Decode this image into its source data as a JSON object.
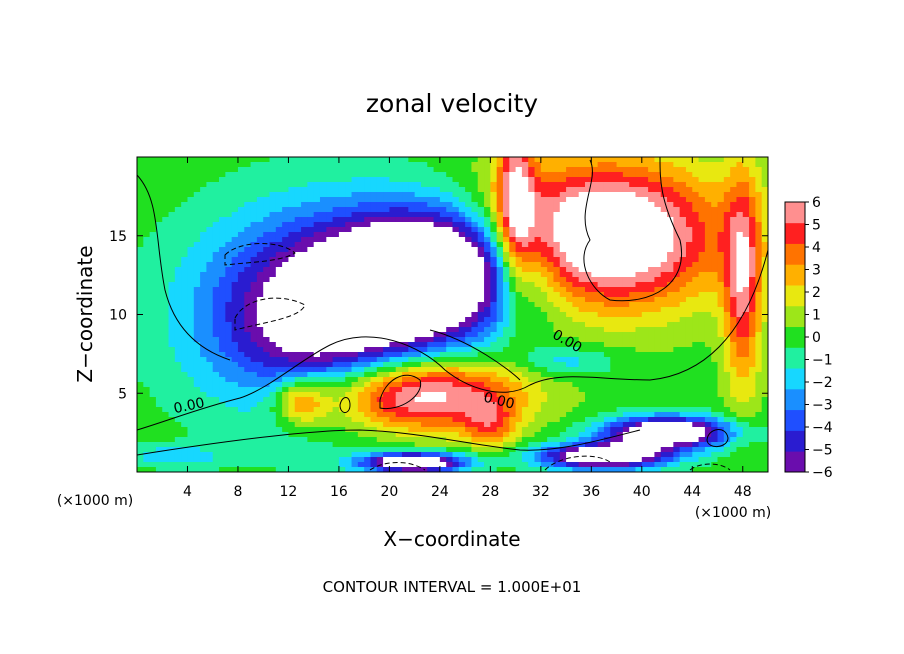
{
  "chart_data": {
    "type": "heatmap",
    "title": "zonal velocity",
    "xlabel": "X−coordinate",
    "ylabel": "Z−coordinate",
    "x_unit_label": "(×1000 m)",
    "z_unit_label": "(×1000 m)",
    "xlim": [
      0,
      50
    ],
    "ylim": [
      0,
      20
    ],
    "x_ticks": [
      4,
      8,
      12,
      16,
      20,
      24,
      28,
      32,
      36,
      40,
      44,
      48
    ],
    "y_ticks": [
      5,
      10,
      15
    ],
    "colorbar": {
      "min": -6,
      "max": 6,
      "ticks": [
        6,
        5,
        4,
        3,
        2,
        1,
        0,
        -1,
        -2,
        -3,
        -4,
        -5,
        -6
      ],
      "tick_labels": [
        "6",
        "5",
        "4",
        "3",
        "2",
        "1",
        "0",
        "−1",
        "−2",
        "−3",
        "−4",
        "−5",
        "−6"
      ],
      "colors": [
        "#6a0dad",
        "#2a1cd0",
        "#1f4fff",
        "#1a8fff",
        "#17d7ff",
        "#20f0a0",
        "#20e020",
        "#9de619",
        "#e8e810",
        "#ffb000",
        "#ff7300",
        "#ff2020",
        "#ff8f8f"
      ]
    },
    "contour_labels": [
      "0.00",
      "0.00",
      "0.00"
    ],
    "footer": "CONTOUR INTERVAL = 1.000E+01",
    "features": [
      {
        "x": 16,
        "z": 10,
        "w": 10,
        "d": 6,
        "value": -9
      },
      {
        "x": 24,
        "z": 13,
        "w": 7,
        "d": 3.5,
        "value": -9
      },
      {
        "x": 37,
        "z": 15,
        "w": 9,
        "d": 4.5,
        "value": 9
      },
      {
        "x": 22,
        "z": 5,
        "w": 8,
        "d": 2.5,
        "value": 9
      },
      {
        "x": 3,
        "z": 1,
        "w": 4,
        "d": 0.7,
        "value": -2
      },
      {
        "x": 42,
        "z": 2.5,
        "w": 5,
        "d": 1,
        "value": -9
      },
      {
        "x": 37,
        "z": 1,
        "w": 5,
        "d": 0.8,
        "value": -9
      },
      {
        "x": 22,
        "z": 0.6,
        "w": 4,
        "d": 0.6,
        "value": -9
      },
      {
        "x": 30,
        "z": 17,
        "w": 1.5,
        "d": 6,
        "value": 5
      },
      {
        "x": 48,
        "z": 12,
        "w": 1.5,
        "d": 7,
        "value": 5
      },
      {
        "x": 13,
        "z": 4.5,
        "w": 2,
        "d": 1.5,
        "value": 4
      },
      {
        "x": 28,
        "z": 3,
        "w": 2,
        "d": 1.5,
        "value": 3
      },
      {
        "x": 46,
        "z": 2.5,
        "w": 1,
        "d": 0.6,
        "value": 0
      },
      {
        "x": 34,
        "z": 7,
        "w": 4,
        "d": 1,
        "value": -2
      }
    ]
  }
}
